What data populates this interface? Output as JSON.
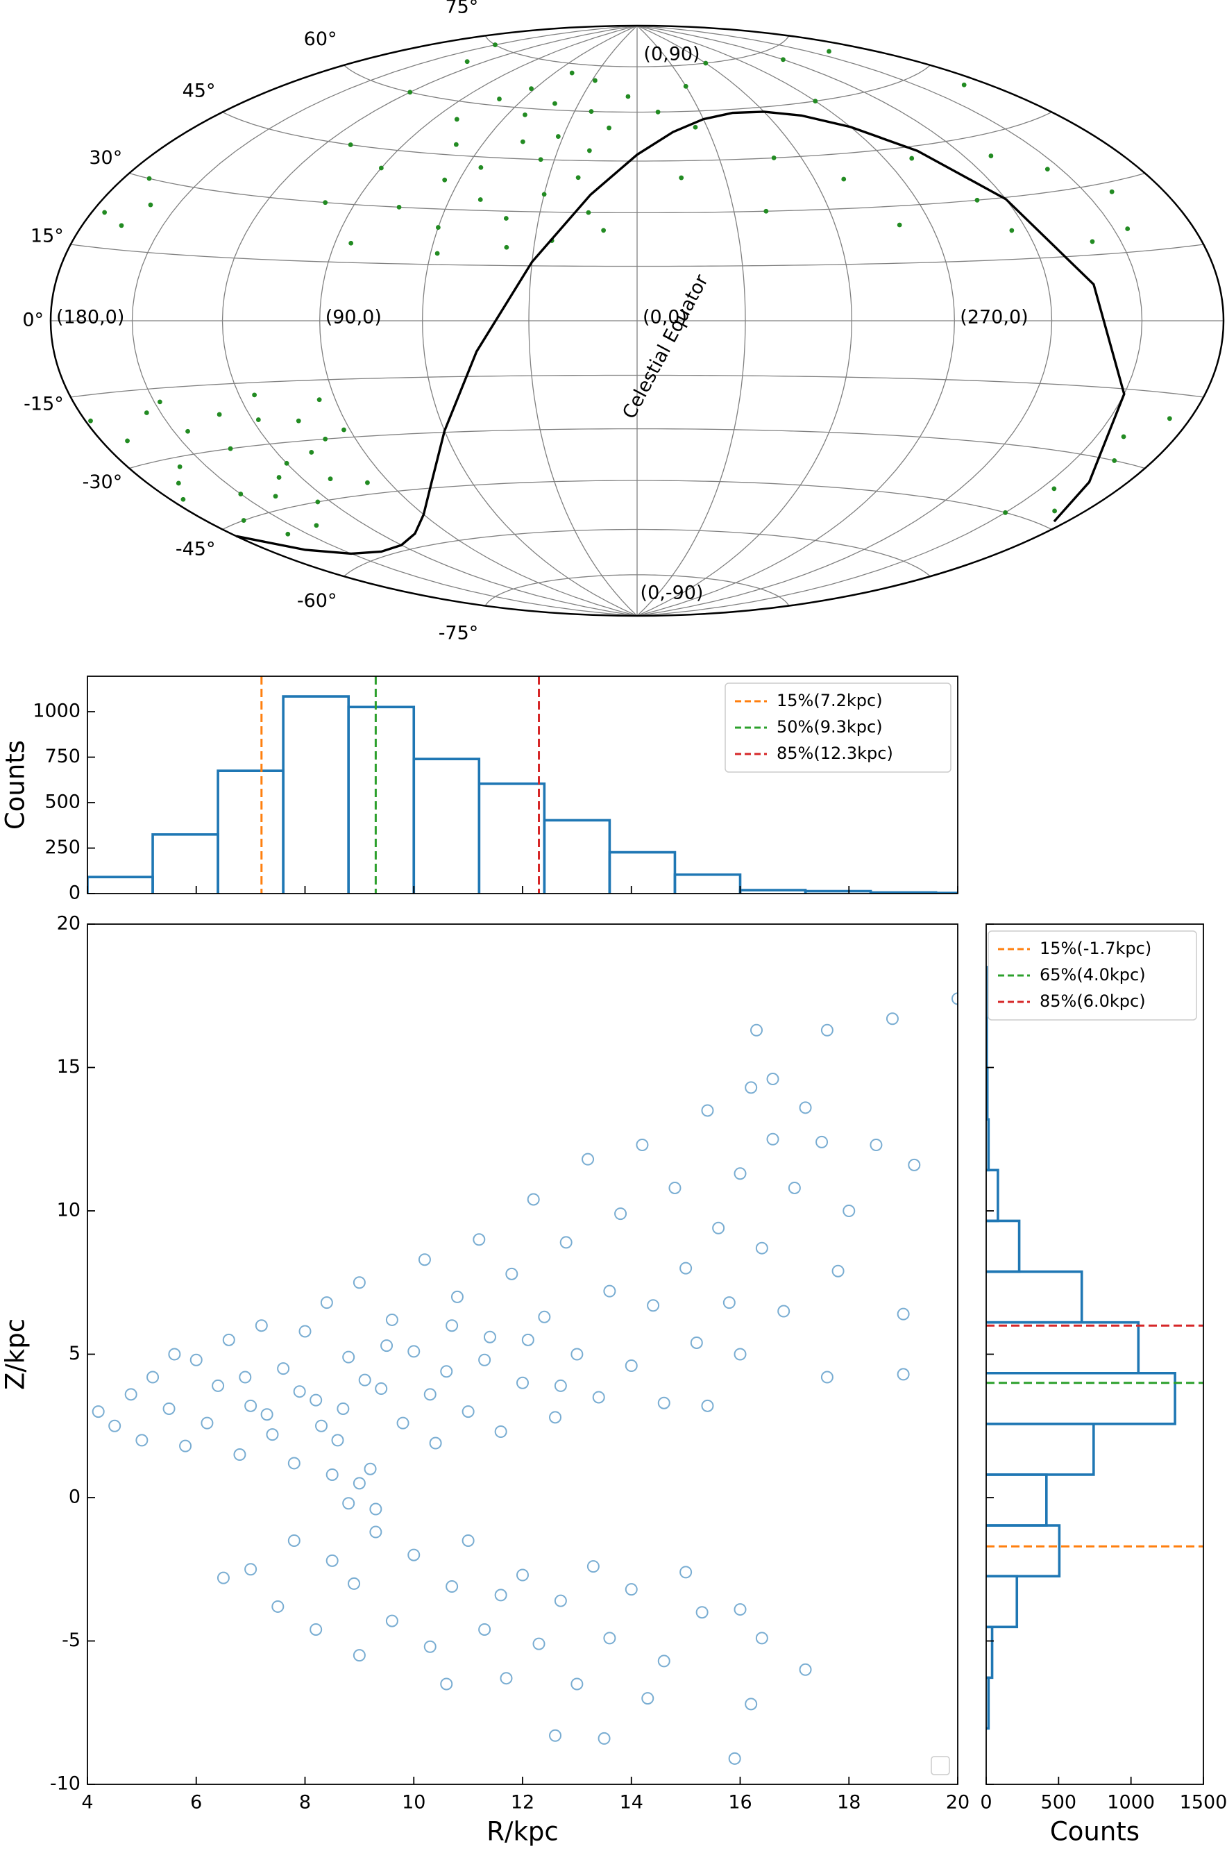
{
  "chart_data": [
    {
      "type": "skymap",
      "projection": "hammer",
      "xticks": [
        {
          "value": 180,
          "label": "(180,0)"
        },
        {
          "value": 90,
          "label": "(90,0)"
        },
        {
          "value": 0,
          "label": "(0,0)"
        },
        {
          "value": 270,
          "label": "(270,0)"
        }
      ],
      "yticks": [
        {
          "value": 75,
          "label": "75°"
        },
        {
          "value": 60,
          "label": "60°"
        },
        {
          "value": 45,
          "label": "45°"
        },
        {
          "value": 30,
          "label": "30°"
        },
        {
          "value": 15,
          "label": "15°"
        },
        {
          "value": 0,
          "label": "0°"
        },
        {
          "value": -15,
          "label": "-15°"
        },
        {
          "value": -30,
          "label": "-30°"
        },
        {
          "value": -45,
          "label": "-45°"
        },
        {
          "value": -60,
          "label": "-60°"
        },
        {
          "value": -75,
          "label": "-75°"
        }
      ],
      "meridians": [
        0,
        30,
        60,
        90,
        120,
        150,
        180,
        210,
        240,
        270,
        300,
        330
      ],
      "pole_labels": [
        "(0,90)",
        "(0,-90)"
      ],
      "series": [
        {
          "color": "#228b22",
          "points": [
            [
              10,
              25
            ],
            [
              15,
              30
            ],
            [
              20,
              40
            ],
            [
              25,
              22
            ],
            [
              30,
              35
            ],
            [
              35,
              45
            ],
            [
              40,
              28
            ],
            [
              45,
              50
            ],
            [
              50,
              33
            ],
            [
              55,
              42
            ],
            [
              60,
              25
            ],
            [
              65,
              38
            ],
            [
              70,
              48
            ],
            [
              75,
              30
            ],
            [
              80,
              55
            ],
            [
              85,
              20
            ],
            [
              90,
              40
            ],
            [
              12,
              55
            ],
            [
              22,
              60
            ],
            [
              32,
              52
            ],
            [
              42,
              62
            ],
            [
              52,
              58
            ],
            [
              62,
              66
            ],
            [
              72,
              62
            ],
            [
              28,
              70
            ],
            [
              48,
              72
            ],
            [
              5,
              65
            ],
            [
              18,
              48
            ],
            [
              38,
              20
            ],
            [
              58,
              18
            ],
            [
              100,
              30
            ],
            [
              110,
              45
            ],
            [
              120,
              60
            ],
            [
              130,
              70
            ],
            [
              150,
              75
            ],
            [
              200,
              70
            ],
            [
              240,
              72
            ],
            [
              300,
              75
            ],
            [
              330,
              68
            ],
            [
              350,
              60
            ],
            [
              345,
              40
            ],
            [
              335,
              55
            ],
            [
              160,
              25
            ],
            [
              170,
              30
            ],
            [
              175,
              22
            ],
            [
              165,
              20
            ],
            [
              200,
              28
            ],
            [
              215,
              35
            ],
            [
              230,
              40
            ],
            [
              250,
              30
            ],
            [
              260,
              42
            ],
            [
              280,
              25
            ],
            [
              290,
              38
            ],
            [
              310,
              45
            ],
            [
              320,
              30
            ],
            [
              205,
              20
            ],
            [
              220,
              18
            ],
            [
              245,
              22
            ],
            [
              270,
              60
            ],
            [
              190,
              55
            ],
            [
              95,
              -20
            ],
            [
              100,
              -30
            ],
            [
              105,
              -25
            ],
            [
              110,
              -40
            ],
            [
              115,
              -18
            ],
            [
              120,
              -35
            ],
            [
              125,
              -45
            ],
            [
              130,
              -22
            ],
            [
              135,
              -30
            ],
            [
              140,
              -50
            ],
            [
              145,
              -25
            ],
            [
              150,
              -40
            ],
            [
              155,
              -20
            ],
            [
              160,
              -32
            ],
            [
              165,
              -45
            ],
            [
              170,
              -25
            ],
            [
              175,
              -38
            ],
            [
              178,
              -20
            ],
            [
              92,
              -28
            ],
            [
              98,
              -42
            ],
            [
              108,
              -33
            ],
            [
              118,
              -24
            ],
            [
              128,
              -38
            ],
            [
              138,
              -42
            ],
            [
              148,
              -18
            ],
            [
              158,
              -50
            ],
            [
              168,
              -35
            ],
            [
              188,
              -20
            ],
            [
              195,
              -30
            ],
            [
              200,
              -25
            ],
            [
              205,
              -38
            ],
            [
              210,
              -45
            ],
            [
              192,
              -42
            ]
          ]
        }
      ],
      "line": {
        "name": "Celestial Equator",
        "color": "#000000",
        "x": [
          185,
          195,
          210,
          225,
          240,
          255,
          270,
          285,
          300,
          315,
          330,
          345,
          360,
          15,
          30,
          45,
          60,
          75,
          90,
          105,
          120,
          135,
          150,
          165,
          180
        ],
        "y": [
          -43.7,
          -35.1,
          -16.1,
          8.3,
          29.6,
          43.7,
          51.9,
          56.5,
          58.6,
          58.9,
          57.4,
          53.7,
          46.9,
          35.1,
          16.1,
          -8.3,
          -29.6,
          -43.7,
          -51.9,
          -56.5,
          -58.6,
          -58.9,
          -57.4,
          -53.7,
          -46.9
        ]
      }
    },
    {
      "type": "histogram",
      "orientation": "vertical",
      "color": "#1f77b4",
      "ylabel": "Counts",
      "bins": [
        4,
        5.2,
        6.4,
        7.6,
        8.8,
        10,
        11.2,
        12.4,
        13.6,
        14.8,
        16,
        17.2,
        18.4,
        19.6,
        20.8
      ],
      "values": [
        91,
        325,
        675,
        1084,
        1026,
        740,
        604,
        403,
        227,
        104,
        19,
        13,
        6,
        3
      ],
      "xlim": [
        4,
        20
      ],
      "ylim": [
        0,
        1195
      ],
      "xticks": [
        4,
        6,
        8,
        10,
        12,
        14,
        16,
        18,
        20
      ],
      "xticklabels": false,
      "yticks": [
        0,
        250,
        500,
        750,
        1000
      ],
      "vlines": [
        {
          "name": "15%(7.2kpc)",
          "value": 7.2,
          "color": "#ff7f0e"
        },
        {
          "name": "50%(9.3kpc)",
          "value": 9.3,
          "color": "#2ca02c"
        },
        {
          "name": "85%(12.3kpc)",
          "value": 12.3,
          "color": "#d62728"
        }
      ],
      "legend": "upper right"
    },
    {
      "type": "scatter",
      "xlabel": "R/kpc",
      "ylabel": "Z/kpc",
      "color": "#1f77b4",
      "marker": "hollow",
      "xlim": [
        4,
        20
      ],
      "ylim": [
        -10,
        20
      ],
      "xticks": [
        4,
        6,
        8,
        10,
        12,
        14,
        16,
        18,
        20
      ],
      "yticks": [
        -10,
        -5,
        0,
        5,
        10,
        15,
        20
      ],
      "points": [
        [
          4.2,
          3.0
        ],
        [
          4.5,
          2.5
        ],
        [
          4.8,
          3.6
        ],
        [
          5.0,
          2.0
        ],
        [
          5.2,
          4.2
        ],
        [
          5.5,
          3.1
        ],
        [
          5.8,
          1.8
        ],
        [
          6.0,
          4.8
        ],
        [
          6.2,
          2.6
        ],
        [
          6.4,
          3.9
        ],
        [
          6.6,
          5.5
        ],
        [
          6.8,
          1.5
        ],
        [
          7.0,
          3.2
        ],
        [
          7.2,
          6.0
        ],
        [
          7.4,
          2.2
        ],
        [
          7.6,
          4.5
        ],
        [
          7.8,
          1.2
        ],
        [
          8.0,
          5.8
        ],
        [
          8.2,
          3.4
        ],
        [
          8.4,
          6.8
        ],
        [
          8.6,
          2.0
        ],
        [
          8.8,
          4.9
        ],
        [
          9.0,
          7.5
        ],
        [
          9.2,
          1.0
        ],
        [
          9.4,
          3.8
        ],
        [
          9.6,
          6.2
        ],
        [
          9.8,
          2.6
        ],
        [
          10.0,
          5.1
        ],
        [
          10.2,
          8.3
        ],
        [
          10.4,
          1.9
        ],
        [
          10.6,
          4.4
        ],
        [
          10.8,
          7.0
        ],
        [
          11.0,
          3.0
        ],
        [
          11.2,
          9.0
        ],
        [
          11.4,
          5.6
        ],
        [
          11.6,
          2.3
        ],
        [
          11.8,
          7.8
        ],
        [
          12.0,
          4.0
        ],
        [
          12.2,
          10.4
        ],
        [
          12.4,
          6.3
        ],
        [
          12.6,
          2.8
        ],
        [
          12.8,
          8.9
        ],
        [
          13.0,
          5.0
        ],
        [
          13.2,
          11.8
        ],
        [
          13.4,
          3.5
        ],
        [
          13.6,
          7.2
        ],
        [
          13.8,
          9.9
        ],
        [
          14.0,
          4.6
        ],
        [
          14.2,
          12.3
        ],
        [
          14.4,
          6.7
        ],
        [
          14.6,
          3.3
        ],
        [
          14.8,
          10.8
        ],
        [
          15.0,
          8.0
        ],
        [
          15.2,
          5.4
        ],
        [
          15.4,
          13.5
        ],
        [
          15.6,
          9.4
        ],
        [
          15.8,
          6.8
        ],
        [
          16.0,
          11.3
        ],
        [
          16.2,
          14.3
        ],
        [
          16.4,
          8.7
        ],
        [
          16.6,
          12.5
        ],
        [
          16.8,
          6.5
        ],
        [
          17.0,
          10.8
        ],
        [
          17.2,
          13.6
        ],
        [
          17.5,
          12.4
        ],
        [
          17.6,
          16.3
        ],
        [
          17.6,
          4.2
        ],
        [
          17.8,
          7.9
        ],
        [
          18.0,
          10.0
        ],
        [
          18.5,
          12.3
        ],
        [
          18.8,
          16.7
        ],
        [
          19.0,
          6.4
        ],
        [
          19.0,
          4.3
        ],
        [
          19.2,
          11.6
        ],
        [
          20.0,
          17.4
        ],
        [
          16.3,
          16.3
        ],
        [
          16.6,
          14.6
        ],
        [
          15.4,
          3.2
        ],
        [
          16.0,
          5.0
        ],
        [
          5.6,
          5.0
        ],
        [
          6.9,
          4.2
        ],
        [
          7.3,
          2.9
        ],
        [
          7.9,
          3.7
        ],
        [
          8.3,
          2.5
        ],
        [
          8.7,
          3.1
        ],
        [
          9.1,
          4.1
        ],
        [
          9.5,
          5.3
        ],
        [
          10.3,
          3.6
        ],
        [
          10.7,
          6.0
        ],
        [
          11.3,
          4.8
        ],
        [
          12.1,
          5.5
        ],
        [
          12.7,
          3.9
        ],
        [
          8.5,
          0.8
        ],
        [
          9.0,
          0.5
        ],
        [
          8.8,
          -0.2
        ],
        [
          9.3,
          -0.4
        ],
        [
          7.0,
          -2.5
        ],
        [
          7.5,
          -3.8
        ],
        [
          7.8,
          -1.5
        ],
        [
          8.2,
          -4.6
        ],
        [
          8.5,
          -2.2
        ],
        [
          8.9,
          -3.0
        ],
        [
          9.3,
          -1.2
        ],
        [
          9.6,
          -4.3
        ],
        [
          10.0,
          -2.0
        ],
        [
          10.3,
          -5.2
        ],
        [
          10.7,
          -3.1
        ],
        [
          11.0,
          -1.5
        ],
        [
          11.3,
          -4.6
        ],
        [
          11.7,
          -6.3
        ],
        [
          12.0,
          -2.7
        ],
        [
          12.3,
          -5.1
        ],
        [
          12.7,
          -3.6
        ],
        [
          13.0,
          -6.5
        ],
        [
          13.3,
          -2.4
        ],
        [
          13.6,
          -4.9
        ],
        [
          14.0,
          -3.2
        ],
        [
          14.3,
          -7.0
        ],
        [
          14.6,
          -5.7
        ],
        [
          15.0,
          -2.6
        ],
        [
          15.3,
          -4.0
        ],
        [
          16.0,
          -3.9
        ],
        [
          16.2,
          -7.2
        ],
        [
          16.4,
          -4.9
        ],
        [
          17.2,
          -6.0
        ],
        [
          13.5,
          -8.4
        ],
        [
          15.9,
          -9.1
        ],
        [
          12.6,
          -8.3
        ],
        [
          10.6,
          -6.5
        ],
        [
          9.0,
          -5.5
        ],
        [
          11.6,
          -3.4
        ],
        [
          6.5,
          -2.8
        ]
      ]
    },
    {
      "type": "histogram",
      "orientation": "horizontal",
      "color": "#1f77b4",
      "xlabel": "Counts",
      "bins": [
        -8.05,
        -6.28,
        -4.51,
        -2.74,
        -0.97,
        0.8,
        2.57,
        4.34,
        6.11,
        7.88,
        9.65,
        11.42,
        13.19,
        14.96,
        16.73,
        18.5
      ],
      "values": [
        16,
        41,
        212,
        505,
        416,
        742,
        1304,
        1051,
        660,
        228,
        81,
        16,
        8,
        4,
        2
      ],
      "xlim": [
        0,
        1500
      ],
      "ylim": [
        -10,
        20
      ],
      "xticks": [
        0,
        500,
        1000,
        1500
      ],
      "yticks": [
        -10,
        -5,
        0,
        5,
        10,
        15,
        20
      ],
      "yticklabels": false,
      "hlines": [
        {
          "name": "15%(-1.7kpc)",
          "value": -1.7,
          "color": "#ff7f0e"
        },
        {
          "name": "65%(4.0kpc)",
          "value": 4.0,
          "color": "#2ca02c"
        },
        {
          "name": "85%(6.0kpc)",
          "value": 6.0,
          "color": "#d62728"
        }
      ],
      "legend": "upper right"
    }
  ]
}
